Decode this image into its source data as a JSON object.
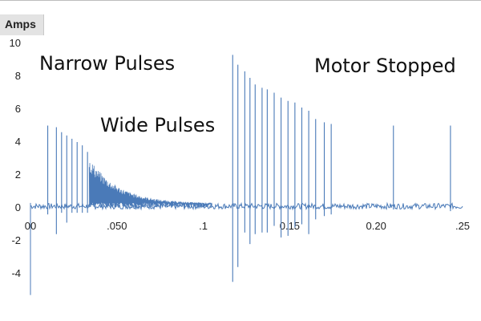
{
  "chart_data": {
    "type": "line",
    "ylabel": "Amps",
    "ylim": [
      -5.5,
      10
    ],
    "xlim": [
      0,
      0.25
    ],
    "y_ticks": [
      "10",
      "8",
      "6",
      "4",
      "2",
      "0",
      "-2",
      "-4"
    ],
    "y_tick_values": [
      10,
      8,
      6,
      4,
      2,
      0,
      -2,
      -4
    ],
    "x_ticks": [
      "00",
      ".050",
      ".1",
      "0.15",
      "0.20",
      ".25"
    ],
    "x_tick_values": [
      0,
      0.05,
      0.1,
      0.15,
      0.2,
      0.25
    ],
    "grid": false,
    "legend": "none",
    "line_color": "#4a7ab8",
    "baseline": 0.1,
    "annotations": [
      "Narrow Pulses",
      "Wide Pulses",
      "Motor Stopped"
    ],
    "series": [
      {
        "narrow_pulses": [
          {
            "t": 0.01,
            "peak": 5.0,
            "min": -0.4
          },
          {
            "t": 0.015,
            "peak": 4.9,
            "min": -1.6
          },
          {
            "t": 0.018,
            "peak": 4.6,
            "min": -0.3
          },
          {
            "t": 0.021,
            "peak": 4.4,
            "min": -0.9
          },
          {
            "t": 0.024,
            "peak": 4.2,
            "min": -0.3
          },
          {
            "t": 0.027,
            "peak": 4.0,
            "min": -0.3
          },
          {
            "t": 0.03,
            "peak": 3.8,
            "min": -0.3
          },
          {
            "t": 0.033,
            "peak": 3.4,
            "min": -0.3
          }
        ],
        "wide_decay": {
          "t_start": 0.034,
          "t_end": 0.105,
          "start": 2.9,
          "end": 0.25
        },
        "wide_pulses": [
          {
            "t": 0.117,
            "peak": 9.3,
            "min": -4.5
          },
          {
            "t": 0.12,
            "peak": 8.7,
            "min": -3.6
          },
          {
            "t": 0.124,
            "peak": 8.3,
            "min": -1.5
          },
          {
            "t": 0.127,
            "peak": 7.9,
            "min": -2.2
          },
          {
            "t": 0.13,
            "peak": 7.5,
            "min": -1.6
          },
          {
            "t": 0.134,
            "peak": 7.3,
            "min": -1.5
          },
          {
            "t": 0.137,
            "peak": 7.2,
            "min": -1.5
          },
          {
            "t": 0.141,
            "peak": 7.0,
            "min": -1.1
          },
          {
            "t": 0.145,
            "peak": 6.7,
            "min": -1.8
          },
          {
            "t": 0.149,
            "peak": 6.5,
            "min": -1.7
          },
          {
            "t": 0.153,
            "peak": 6.4,
            "min": -1.2
          },
          {
            "t": 0.157,
            "peak": 6.1,
            "min": -1.0
          },
          {
            "t": 0.161,
            "peak": 5.9,
            "min": -1.6
          },
          {
            "t": 0.165,
            "peak": 5.4,
            "min": -0.7
          },
          {
            "t": 0.17,
            "peak": 5.2,
            "min": -0.5
          },
          {
            "t": 0.174,
            "peak": 5.1,
            "min": -0.4
          }
        ],
        "motor_stopped_spikes": [
          {
            "t": 0.21,
            "peak": 5.0,
            "min": -0.1
          },
          {
            "t": 0.243,
            "peak": 5.0,
            "min": -0.2
          }
        ]
      }
    ]
  }
}
